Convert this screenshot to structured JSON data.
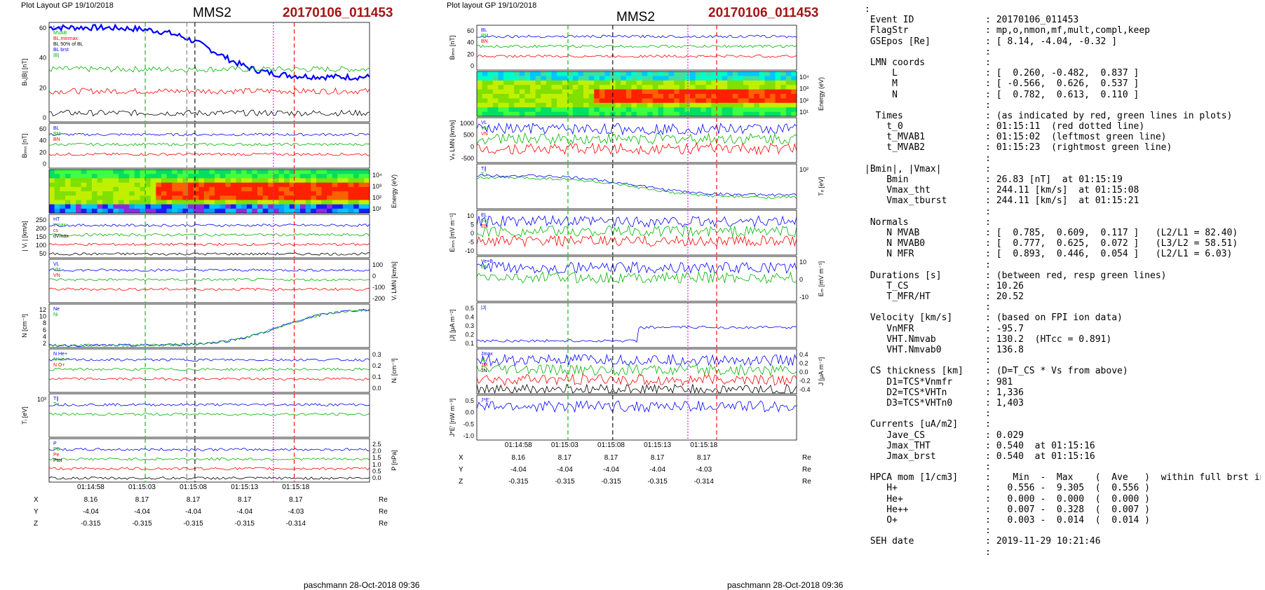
{
  "header": {
    "left_caption": "Plot Layout GP 19/10/2018",
    "mid_caption": "Plot layout GP 19/10/2018",
    "spacecraft": "MMS2",
    "event": "20170106_011453"
  },
  "footer": {
    "left": "paschmann 28-Oct-2018 09:36",
    "right": "paschmann 28-Oct-2018 09:36"
  },
  "time_axis": {
    "ticks": [
      "01:14:58",
      "01:15:03",
      "01:15:08",
      "01:15:13",
      "01:15:18"
    ]
  },
  "coords": {
    "rows": [
      {
        "label": "X",
        "values": [
          "8.16",
          "8.17",
          "8.17",
          "8.17",
          "8.17"
        ],
        "unit": "Re"
      },
      {
        "label": "Y",
        "values": [
          "-4.04",
          "-4.04",
          "-4.04",
          "-4.04",
          "-4.03"
        ],
        "unit": "Re"
      },
      {
        "label": "Z",
        "values": [
          "-0.315",
          "-0.315",
          "-0.315",
          "-0.315",
          "-0.314"
        ],
        "unit": "Re"
      }
    ]
  },
  "colors": {
    "red": "#ff0000",
    "green": "#00b400",
    "blue": "#0000ff",
    "magenta": "#ff00ff",
    "navy": "#0000a0",
    "gray": "#808080",
    "event_red": "#a31515"
  },
  "left_panels": [
    {
      "id": "bl",
      "ylabel": "Bₗ,|B| [nT]",
      "ylabel_sub": "",
      "side": "left",
      "ticks": [
        "60",
        "40",
        "20",
        "0"
      ],
      "legend": [
        "t_cs",
        "MVAB",
        "BL,minmax",
        "BL 50% of BL",
        "BL brst",
        "|B|"
      ]
    },
    {
      "id": "blmn",
      "ylabel": "Bₗₘₙ [nT]",
      "side": "left",
      "ticks": [
        "60",
        "40",
        "20",
        "0"
      ],
      "legend": [
        "BL",
        "BM",
        "BN"
      ]
    },
    {
      "id": "spec",
      "ylabel": "Energy (eV)",
      "side": "right",
      "ticks": [
        "10⁴",
        "10³",
        "10²",
        "10¹"
      ],
      "legend": []
    },
    {
      "id": "vi",
      "ylabel": "| Vᵢ | [km/s]",
      "side": "left",
      "ticks": [
        "250",
        "200",
        "150",
        "100",
        "50"
      ],
      "legend": [
        "HT",
        "Vmax",
        "cs",
        "dVmax"
      ]
    },
    {
      "id": "vilmn",
      "ylabel": "Vᵢ LMN [km/s]",
      "side": "right",
      "ticks": [
        "100",
        "0",
        "-100",
        "-200"
      ],
      "legend": [
        "VL",
        "VM",
        "VN"
      ]
    },
    {
      "id": "n",
      "ylabel": "N [cm⁻³]",
      "side": "left",
      "ticks": [
        "12",
        "10",
        "8",
        "6",
        "4",
        "2"
      ],
      "legend": [
        "Ne",
        "Ni"
      ]
    },
    {
      "id": "ni",
      "ylabel": "Nᵢ [cm⁻³]",
      "side": "right",
      "ticks": [
        "0.3",
        "0.2",
        "0.1",
        "0.0"
      ],
      "legend": [
        "N He+",
        "N He++",
        "N O+"
      ]
    },
    {
      "id": "ti",
      "ylabel": "Tᵢ [eV]",
      "side": "left",
      "ticks": [
        "10³"
      ],
      "legend": [
        "T∥",
        "T⊥"
      ]
    },
    {
      "id": "p",
      "ylabel": "P [nPa]",
      "side": "right",
      "ticks": [
        "2.5",
        "2.0",
        "1.5",
        "1.0",
        "0.5",
        "0.0"
      ],
      "legend": [
        "P",
        "PB",
        "Pe",
        "Ptot"
      ]
    }
  ],
  "right_panels": [
    {
      "id": "blmn2",
      "ylabel": "Bₗₘₙ [nT]",
      "side": "left",
      "ticks": [
        "60",
        "40",
        "20",
        "0"
      ],
      "legend": [
        "BL",
        "BM",
        "BN"
      ]
    },
    {
      "id": "espec",
      "ylabel": "Energy (eV)",
      "side": "right",
      "ticks": [
        "10⁴",
        "10³",
        "10²",
        "10¹"
      ],
      "legend": []
    },
    {
      "id": "ve",
      "ylabel": "Vₑ LMN [km/s]",
      "side": "left",
      "ticks": [
        "1000",
        "500",
        "0",
        "-500"
      ],
      "legend": [
        "VL",
        "VM",
        "VN"
      ]
    },
    {
      "id": "te",
      "ylabel": "Tₑ [eV]",
      "side": "right",
      "ticks": [
        "10²"
      ],
      "legend": [
        "T∥",
        "T⊥"
      ]
    },
    {
      "id": "elmn",
      "ylabel": "Eₗₘₙ [mV m⁻¹]",
      "side": "left",
      "ticks": [
        "10",
        "5",
        "0",
        "-5",
        "-10"
      ],
      "legend": [
        "EL",
        "EM",
        "EN"
      ]
    },
    {
      "id": "em",
      "ylabel": "Eₘ [mV m⁻¹]",
      "side": "right",
      "ticks": [
        "10",
        "0",
        "-10"
      ],
      "legend": [
        "Ve×B",
        "EM"
      ]
    },
    {
      "id": "j",
      "ylabel": "|J| [μA m⁻²]",
      "side": "left",
      "ticks": [
        "0.5",
        "0.4",
        "0.3",
        "0.2",
        "0.1"
      ],
      "legend": [
        "|J|"
      ]
    },
    {
      "id": "jlmn",
      "ylabel": "J [μA m⁻²]",
      "side": "right",
      "ticks": [
        "0.4",
        "0.2",
        "0.0",
        "-0.2",
        "-0.4"
      ],
      "legend": [
        "Jmax",
        "JL",
        "JM",
        "JN"
      ]
    },
    {
      "id": "je",
      "ylabel": "J*E' [nW m⁻³]",
      "side": "left",
      "ticks": [
        "0.5",
        "0.0",
        "-0.5",
        "-1.0"
      ],
      "legend": [
        "J*E'"
      ]
    }
  ],
  "info_lines": [
    ":",
    " Event ID             : 20170106_011453",
    " FlagStr              : mp,o,nmon,mf,mult,compl,keep",
    " GSEpos [Re]          : [ 8.14, -4.04, -0.32 ]",
    "                      :",
    " LMN coords           :",
    "     L                : [  0.260, -0.482,  0.837 ]",
    "     M                : [ -0.566,  0.626,  0.537 ]",
    "     N                : [  0.782,  0.613,  0.110 ]",
    "                      :",
    "  Times               : (as indicated by red, green lines in plots)",
    "    t_0               : 01:15:11  (red dotted line)",
    "    t_MVAB1           : 01:15:02  (leftmost green line)",
    "    t_MVAB2           : 01:15:23  (rightmost green line)",
    "                      :",
    "|Bmin|, |Vmax|        :",
    "    Bmin              : 26.83 [nT]  at 01:15:19",
    "    Vmax_tht          : 244.11 [km/s]  at 01:15:08",
    "    Vmax_tburst       : 244.11 [km/s]  at 01:15:21",
    "                      :",
    " Normals              :",
    "    N MVAB            : [  0.785,  0.609,  0.117 ]   (L2/L1 = 82.40)",
    "    N MVAB0           : [  0.777,  0.625,  0.072 ]   (L3/L2 = 58.51)",
    "    N MFR             : [  0.893,  0.446,  0.054 ]   (L2/L1 = 6.03)",
    "                      :",
    " Durations [s]        : (between red, resp green lines)",
    "    T_CS              : 10.26",
    "    T_MFR/HT          : 20.52",
    "                      :",
    " Velocity [km/s]      : (based on FPI ion data)",
    "    VnMFR             : -95.7",
    "    VHT.Nmvab         : 130.2  (HTcc = 0.891)",
    "    VHT.Nmvab0        : 136.8",
    "                      :",
    " CS thickness [km]    : (D=T_CS * Vs from above)",
    "    D1=TCS*Vnmfr      : 981",
    "    D2=TCS*VHTn       : 1,336",
    "    D3=TCS*VHTn0      : 1,403",
    "                      :",
    " Currents [uA/m2]     :",
    "    Jave_CS           : 0.029",
    "    Jmax_THT          : 0.540  at 01:15:16",
    "    Jmax_brst         : 0.540  at 01:15:16",
    "                      :",
    " HPCA mom [1/cm3]     :    Min  -  Max    (  Ave   )  within full brst int",
    "    H+                :   0.556 -  9.305  (  0.556 )",
    "    He+               :   0.000 -  0.000  (  0.000 )",
    "    He++              :   0.007 -  0.328  (  0.007 )",
    "    O+                :   0.003 -  0.014  (  0.014 )",
    "                      :",
    " SEH date             : 2019-11-29 10:21:46",
    "                      :"
  ]
}
